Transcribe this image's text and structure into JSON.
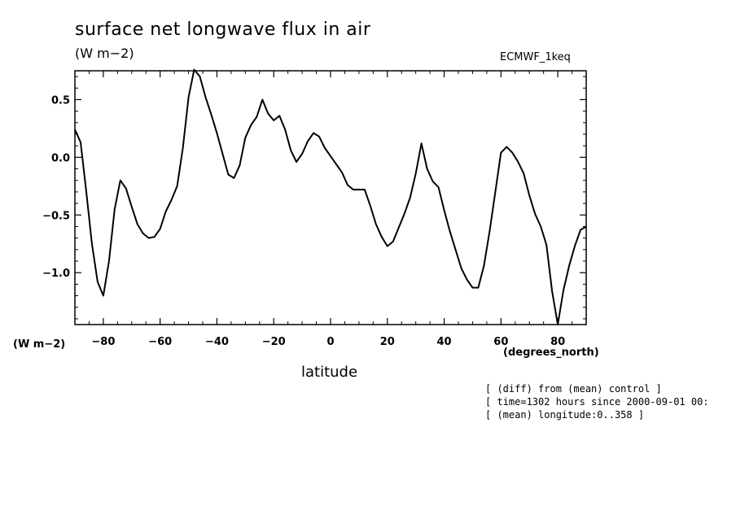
{
  "chart_data": {
    "type": "line",
    "title": "surface net longwave flux in air",
    "units": "(W m−2)",
    "model_label": "ECMWF_1keq",
    "y_units_label": "(W m−2)",
    "x_units_label": "(degrees_north)",
    "xlabel": "latitude",
    "xlim": [
      -90,
      90
    ],
    "ylim": [
      -1.45,
      0.75
    ],
    "x_ticks": [
      -80,
      -60,
      -40,
      -20,
      0,
      20,
      40,
      60,
      80
    ],
    "x_tick_labels": [
      "−80",
      "−60",
      "−40",
      "−20",
      "0",
      "20",
      "40",
      "60",
      "80"
    ],
    "y_ticks": [
      0.5,
      0.0,
      -0.5,
      -1.0
    ],
    "y_tick_labels": [
      "0.5",
      "0.0",
      "−0.5",
      "−1.0"
    ],
    "grid": false,
    "series": [
      {
        "x": [
          -90,
          -88,
          -86,
          -84,
          -82,
          -80,
          -78,
          -76,
          -74,
          -72,
          -70,
          -68,
          -66,
          -64,
          -62,
          -60,
          -58,
          -56,
          -54,
          -52,
          -50,
          -48,
          -46,
          -44,
          -42,
          -40,
          -38,
          -36,
          -34,
          -32,
          -30,
          -28,
          -26,
          -24,
          -22,
          -20,
          -18,
          -16,
          -14,
          -12,
          -10,
          -8,
          -6,
          -4,
          -2,
          0,
          2,
          4,
          6,
          8,
          10,
          12,
          14,
          16,
          18,
          20,
          22,
          24,
          26,
          28,
          30,
          32,
          34,
          36,
          38,
          40,
          42,
          44,
          46,
          48,
          50,
          52,
          54,
          56,
          58,
          60,
          62,
          64,
          66,
          68,
          70,
          72,
          74,
          76,
          78,
          80,
          82,
          84,
          86,
          88,
          90
        ],
        "y": [
          0.24,
          0.13,
          -0.3,
          -0.75,
          -1.08,
          -1.2,
          -0.9,
          -0.45,
          -0.2,
          -0.27,
          -0.43,
          -0.58,
          -0.66,
          -0.7,
          -0.69,
          -0.62,
          -0.47,
          -0.37,
          -0.25,
          0.08,
          0.52,
          0.76,
          0.7,
          0.52,
          0.37,
          0.21,
          0.03,
          -0.15,
          -0.18,
          -0.07,
          0.17,
          0.28,
          0.35,
          0.5,
          0.38,
          0.32,
          0.36,
          0.24,
          0.06,
          -0.04,
          0.03,
          0.14,
          0.21,
          0.18,
          0.08,
          0.01,
          -0.06,
          -0.13,
          -0.24,
          -0.28,
          -0.28,
          -0.28,
          -0.42,
          -0.58,
          -0.69,
          -0.77,
          -0.73,
          -0.61,
          -0.49,
          -0.35,
          -0.14,
          0.12,
          -0.1,
          -0.21,
          -0.26,
          -0.46,
          -0.64,
          -0.8,
          -0.96,
          -1.06,
          -1.13,
          -1.13,
          -0.94,
          -0.64,
          -0.3,
          0.04,
          0.09,
          0.04,
          -0.04,
          -0.14,
          -0.33,
          -0.49,
          -0.6,
          -0.76,
          -1.16,
          -1.45,
          -1.15,
          -0.94,
          -0.77,
          -0.63,
          -0.6
        ]
      }
    ]
  },
  "annotations": {
    "lines": [
      "[ (diff) from (mean) control ]",
      "[ time=1302 hours since 2000-09-01 00:",
      "[ (mean) longitude:0..358 ]"
    ]
  }
}
